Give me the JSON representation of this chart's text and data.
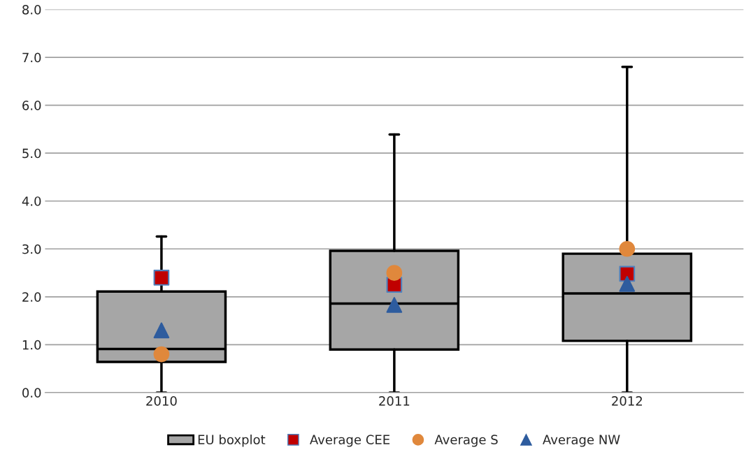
{
  "chart_data": {
    "type": "box",
    "categories": [
      "2010",
      "2011",
      "2012"
    ],
    "ylim": [
      0,
      8
    ],
    "yticks": [
      {
        "value": 0,
        "label": "0.0"
      },
      {
        "value": 1,
        "label": "1.0"
      },
      {
        "value": 2,
        "label": "2.0"
      },
      {
        "value": 3,
        "label": "3.0"
      },
      {
        "value": 4,
        "label": "4.0"
      },
      {
        "value": 5,
        "label": "5.0"
      },
      {
        "value": 6,
        "label": "6.0"
      },
      {
        "value": 7,
        "label": "7.0"
      },
      {
        "value": 8,
        "label": "8.0"
      }
    ],
    "grid": "y",
    "legend": "bottom",
    "series": [
      {
        "name": "EU boxplot",
        "color": "#a6a6a6",
        "boxes": [
          {
            "low": 0,
            "q1": 0.64,
            "median": 0.91,
            "q3": 2.11,
            "high": 3.26
          },
          {
            "low": 0,
            "q1": 0.9,
            "median": 1.86,
            "q3": 2.96,
            "high": 5.39
          },
          {
            "low": 0,
            "q1": 1.08,
            "median": 2.07,
            "q3": 2.9,
            "high": 6.8
          }
        ]
      },
      {
        "name": "Average CEE",
        "type": "scatter",
        "marker": "square",
        "color": "#c00000",
        "values": [
          2.4,
          2.25,
          2.48
        ]
      },
      {
        "name": "Average S",
        "type": "scatter",
        "marker": "circle",
        "color": "#e0883c",
        "values": [
          0.8,
          2.5,
          3.0
        ]
      },
      {
        "name": "Average NW",
        "type": "scatter",
        "marker": "triangle",
        "color": "#2e5c9e",
        "values": [
          1.3,
          1.83,
          2.27
        ]
      }
    ]
  }
}
